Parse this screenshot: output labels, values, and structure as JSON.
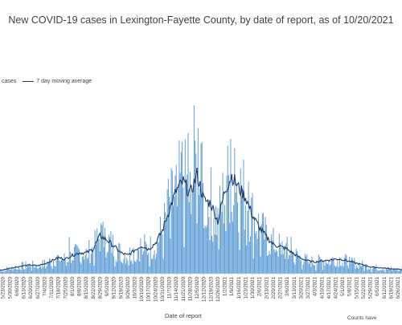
{
  "chart_data": {
    "type": "bar",
    "title": "New COVID-19 cases in Lexington-Fayette County, by date of report, as of 10/20/2021",
    "xlabel": "Date of report",
    "footnote": "Counts have",
    "colors": {
      "bars": "#5b9bd5",
      "average": "#1f3864",
      "text": "#404040"
    },
    "legend": {
      "position": "top-left",
      "entries": [
        {
          "label": "cases",
          "kind": "bar",
          "color": "#5b9bd5"
        },
        {
          "label": "7 day moving average",
          "kind": "line",
          "color": "#1f3864"
        }
      ]
    },
    "x_start": "2020-05-20",
    "x_end": "2021-06-30",
    "tick_labels": [
      "5/23/2020",
      "5/30/2020",
      "6/6/2020",
      "6/13/2020",
      "6/20/2020",
      "6/27/2020",
      "7/4/2020",
      "7/11/2020",
      "7/18/2020",
      "7/25/2020",
      "8/1/2020",
      "8/8/2020",
      "8/15/2020",
      "8/22/2020",
      "8/29/2020",
      "9/5/2020",
      "9/12/2020",
      "9/19/2020",
      "9/26/2020",
      "10/3/2020",
      "10/10/2020",
      "10/17/2020",
      "10/24/2020",
      "10/31/2020",
      "11/7/2020",
      "11/14/2020",
      "11/21/2020",
      "11/28/2020",
      "12/5/2020",
      "12/12/2020",
      "12/19/2020",
      "12/26/2020",
      "1/2/2021",
      "1/9/2021",
      "1/16/2021",
      "1/23/2021",
      "1/30/2021",
      "2/6/2021",
      "2/13/2021",
      "2/20/2021",
      "2/27/2021",
      "3/6/2021",
      "3/13/2021",
      "3/20/2021",
      "3/27/2021",
      "4/3/2021",
      "4/10/2021",
      "4/17/2021",
      "4/24/2021",
      "5/1/2021",
      "5/8/2021",
      "5/15/2021",
      "5/22/2021",
      "5/29/2021",
      "6/5/2021",
      "6/12/2021",
      "6/19/2021",
      "6/26/2021"
    ],
    "weekly_average": [
      {
        "x": "2020-05-23",
        "y": 6
      },
      {
        "x": "2020-05-30",
        "y": 9
      },
      {
        "x": "2020-06-06",
        "y": 11
      },
      {
        "x": "2020-06-13",
        "y": 13
      },
      {
        "x": "2020-06-20",
        "y": 14
      },
      {
        "x": "2020-06-27",
        "y": 13
      },
      {
        "x": "2020-07-04",
        "y": 16
      },
      {
        "x": "2020-07-11",
        "y": 21
      },
      {
        "x": "2020-07-18",
        "y": 26
      },
      {
        "x": "2020-07-25",
        "y": 24
      },
      {
        "x": "2020-08-01",
        "y": 30
      },
      {
        "x": "2020-08-08",
        "y": 34
      },
      {
        "x": "2020-08-15",
        "y": 34
      },
      {
        "x": "2020-08-22",
        "y": 40
      },
      {
        "x": "2020-08-29",
        "y": 62
      },
      {
        "x": "2020-09-05",
        "y": 55
      },
      {
        "x": "2020-09-12",
        "y": 45
      },
      {
        "x": "2020-09-19",
        "y": 34
      },
      {
        "x": "2020-09-26",
        "y": 30
      },
      {
        "x": "2020-10-03",
        "y": 38
      },
      {
        "x": "2020-10-10",
        "y": 46
      },
      {
        "x": "2020-10-17",
        "y": 40
      },
      {
        "x": "2020-10-24",
        "y": 50
      },
      {
        "x": "2020-10-31",
        "y": 70
      },
      {
        "x": "2020-11-07",
        "y": 105
      },
      {
        "x": "2020-11-14",
        "y": 135
      },
      {
        "x": "2020-11-21",
        "y": 150
      },
      {
        "x": "2020-11-28",
        "y": 130
      },
      {
        "x": "2020-12-05",
        "y": 162
      },
      {
        "x": "2020-12-12",
        "y": 120
      },
      {
        "x": "2020-12-19",
        "y": 115
      },
      {
        "x": "2020-12-26",
        "y": 85
      },
      {
        "x": "2021-01-02",
        "y": 135
      },
      {
        "x": "2021-01-09",
        "y": 160
      },
      {
        "x": "2021-01-16",
        "y": 140
      },
      {
        "x": "2021-01-23",
        "y": 125
      },
      {
        "x": "2021-01-30",
        "y": 95
      },
      {
        "x": "2021-02-06",
        "y": 75
      },
      {
        "x": "2021-02-13",
        "y": 60
      },
      {
        "x": "2021-02-20",
        "y": 48
      },
      {
        "x": "2021-02-27",
        "y": 44
      },
      {
        "x": "2021-03-06",
        "y": 40
      },
      {
        "x": "2021-03-13",
        "y": 32
      },
      {
        "x": "2021-03-20",
        "y": 25
      },
      {
        "x": "2021-03-27",
        "y": 21
      },
      {
        "x": "2021-04-03",
        "y": 19
      },
      {
        "x": "2021-04-10",
        "y": 21
      },
      {
        "x": "2021-04-17",
        "y": 22
      },
      {
        "x": "2021-04-24",
        "y": 24
      },
      {
        "x": "2021-05-01",
        "y": 23
      },
      {
        "x": "2021-05-08",
        "y": 20
      },
      {
        "x": "2021-05-15",
        "y": 17
      },
      {
        "x": "2021-05-22",
        "y": 14
      },
      {
        "x": "2021-05-29",
        "y": 11
      },
      {
        "x": "2021-06-05",
        "y": 10
      },
      {
        "x": "2021-06-12",
        "y": 9
      },
      {
        "x": "2021-06-19",
        "y": 8
      },
      {
        "x": "2021-06-26",
        "y": 7
      },
      {
        "x": "2021-06-30",
        "y": 7
      }
    ],
    "peaks": [
      {
        "x": "2020-07-29",
        "y": 60
      },
      {
        "x": "2020-08-30",
        "y": 82
      },
      {
        "x": "2020-09-03",
        "y": 75
      },
      {
        "x": "2020-11-06",
        "y": 155
      },
      {
        "x": "2020-11-20",
        "y": 215
      },
      {
        "x": "2020-11-26",
        "y": 230
      },
      {
        "x": "2020-12-02",
        "y": 275
      },
      {
        "x": "2020-12-06",
        "y": 238
      },
      {
        "x": "2020-12-10",
        "y": 215
      },
      {
        "x": "2021-01-04",
        "y": 160
      },
      {
        "x": "2021-01-08",
        "y": 220
      },
      {
        "x": "2021-01-12",
        "y": 205
      },
      {
        "x": "2021-01-26",
        "y": 150
      },
      {
        "x": "2021-02-20",
        "y": 75
      },
      {
        "x": "2021-03-10",
        "y": 60
      }
    ],
    "ylim": [
      0,
      300
    ],
    "grid": false
  }
}
